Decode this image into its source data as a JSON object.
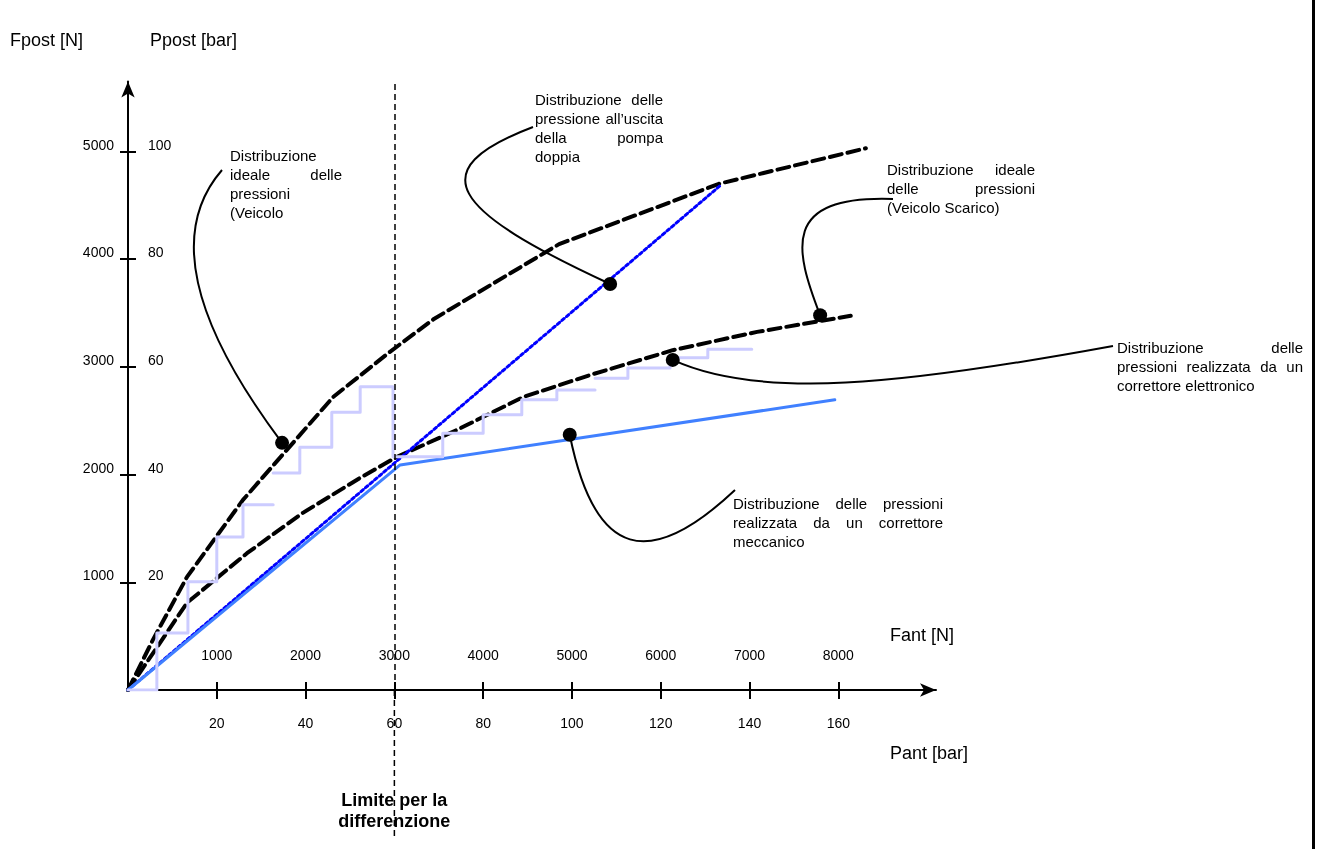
{
  "chart_data": {
    "type": "line",
    "xlabel": "Pant [bar]",
    "x2label": "Fant [N]",
    "ylabel": "Ppost [bar]",
    "y2label": "Fpost [N]",
    "xlim": [
      0,
      182
    ],
    "xticks": [
      20,
      40,
      60,
      80,
      100,
      120,
      140,
      160
    ],
    "x2lim": [
      0,
      9100
    ],
    "x2ticks": [
      1000,
      2000,
      3000,
      4000,
      5000,
      6000,
      7000,
      8000
    ],
    "ylim": [
      0,
      113
    ],
    "yticks": [
      20,
      40,
      60,
      80,
      100
    ],
    "y2lim": [
      0,
      5650
    ],
    "y2ticks": [
      1000,
      2000,
      3000,
      4000,
      5000
    ],
    "grid": false,
    "marker": "none",
    "series": [
      {
        "color": "#000000",
        "line_style": "dashed",
        "x": [
          0,
          5.6,
          13.3,
          25.9,
          46.2,
          59.0,
          68.9,
          97.1,
          133.1,
          166.2
        ],
        "values": [
          0,
          9.3,
          21.0,
          35.3,
          54.4,
          62.8,
          68.9,
          82.8,
          94.0,
          100.6
        ]
      },
      {
        "color": "#000000",
        "line_style": "dashed",
        "x": [
          0,
          1.1,
          13.3,
          26.8,
          39.4,
          52.3,
          60.6,
          74.1,
          89.0,
          104.1,
          122.7,
          141.7,
          162.8
        ],
        "values": [
          0,
          1.3,
          16.2,
          25.4,
          32.9,
          39.4,
          43.3,
          48.3,
          54.4,
          58.5,
          63.1,
          66.5,
          69.5
        ]
      },
      {
        "color": "#0000ff",
        "line_style": "dotted",
        "x": [
          0,
          133.3
        ],
        "values": [
          0,
          93.6
        ]
      },
      {
        "color": "#4080ff",
        "line_style": "solid",
        "x": [
          0,
          61.3,
          159.2
        ],
        "values": [
          0,
          41.8,
          53.9
        ]
      },
      {
        "type": "step",
        "color": "#ccccff",
        "line_style": "solid",
        "x": [
          0,
          6.5,
          13.5,
          20.0,
          25.9,
          32.7
        ],
        "values": [
          0,
          10.6,
          20.1,
          28.4,
          34.4,
          34.4
        ]
      },
      {
        "type": "step",
        "color": "#ccccff",
        "line_style": "solid",
        "x": [
          32.7,
          38.7,
          45.9,
          52.3,
          59.7,
          70.9,
          80.0,
          88.7,
          96.6,
          105.2
        ],
        "values": [
          40.3,
          45.1,
          51.6,
          56.3,
          43.3,
          47.7,
          51.1,
          53.9,
          55.7,
          55.7
        ]
      },
      {
        "type": "step",
        "color": "#ccccff",
        "line_style": "solid",
        "x": [
          105.2,
          112.6,
          122.1,
          130.6,
          140.5
        ],
        "values": [
          57.9,
          59.8,
          61.7,
          63.3,
          63.3
        ]
      }
    ],
    "ref_lines": [
      {
        "axis": "x",
        "value": 60,
        "label": "Limite per la differenzione",
        "color": "#000000",
        "line_style": "dashed"
      }
    ],
    "annotations": [
      {
        "text": "Distribuzione ideale delle pressioni (Veicolo",
        "x": 34.7,
        "y": 45.9
      },
      {
        "text": "Distribuzione delle pressione all’uscita della pompa doppia",
        "x": 108.6,
        "y": 75.4
      },
      {
        "text": "Distribuzione ideale delle pressioni (Veicolo Scarico)",
        "x": 155.9,
        "y": 69.6
      },
      {
        "text": "Distribuzione delle pressioni realizzata da un correttore elettronico",
        "x": 122.7,
        "y": 61.3
      },
      {
        "text": "Distribuzione delle pressioni realizzata da un correttore meccanico",
        "x": 99.5,
        "y": 47.4
      }
    ]
  }
}
